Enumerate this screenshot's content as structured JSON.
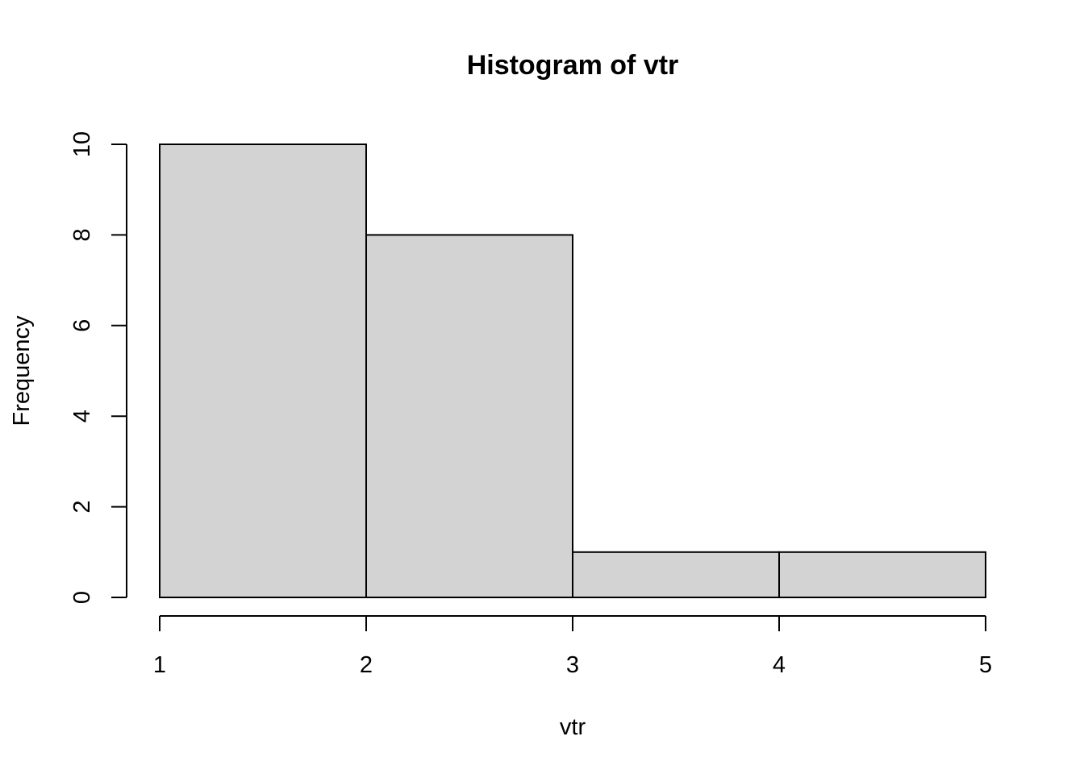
{
  "chart_data": {
    "type": "bar",
    "title": "Histogram of vtr",
    "xlabel": "vtr",
    "ylabel": "Frequency",
    "bins": [
      {
        "from": 1,
        "to": 2,
        "count": 10
      },
      {
        "from": 2,
        "to": 3,
        "count": 8
      },
      {
        "from": 3,
        "to": 4,
        "count": 1
      },
      {
        "from": 4,
        "to": 5,
        "count": 1
      }
    ],
    "x_ticks": [
      1,
      2,
      3,
      4,
      5
    ],
    "x_tick_labels": [
      "1",
      "2",
      "3",
      "4",
      "5"
    ],
    "y_ticks": [
      0,
      2,
      4,
      6,
      8,
      10
    ],
    "y_tick_labels": [
      "0",
      "2",
      "4",
      "6",
      "8",
      "10"
    ],
    "xlim": [
      1,
      5
    ],
    "ylim": [
      0,
      10
    ],
    "grid": false,
    "bar_fill": "#d3d3d3",
    "line_color": "#000000"
  }
}
